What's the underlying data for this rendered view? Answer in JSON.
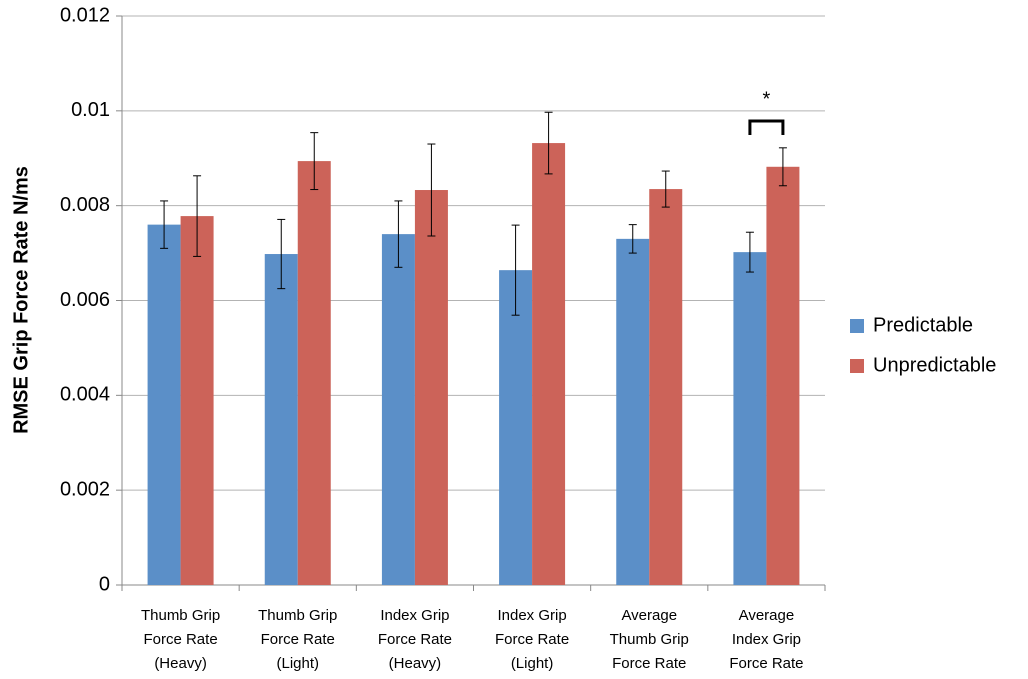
{
  "chart_data": {
    "type": "bar",
    "y_label": "RMSE Grip Force Rate N/ms",
    "categories": [
      "Thumb Grip\nForce Rate\n(Heavy)",
      "Thumb Grip\nForce Rate\n(Light)",
      "Index Grip\nForce Rate\n(Heavy)",
      "Index Grip\nForce Rate\n(Light)",
      "Average\nThumb Grip\nForce Rate",
      "Average\nIndex Grip\nForce Rate"
    ],
    "series": [
      {
        "name": "Predictable",
        "color": "#5b8fc8",
        "values": [
          0.0076,
          0.00698,
          0.0074,
          0.00664,
          0.0073,
          0.00702
        ],
        "errors": [
          0.0005,
          0.00073,
          0.0007,
          0.00095,
          0.0003,
          0.00042
        ]
      },
      {
        "name": "Unpredictable",
        "color": "#cc6359",
        "values": [
          0.00778,
          0.00894,
          0.00833,
          0.00932,
          0.00835,
          0.00882
        ],
        "errors": [
          0.00085,
          0.0006,
          0.00097,
          0.00065,
          0.00038,
          0.0004
        ]
      }
    ],
    "annotation": "*",
    "ylim": [
      0,
      0.012
    ],
    "yticks": [
      0,
      0.002,
      0.004,
      0.006,
      0.008,
      0.01,
      0.012
    ],
    "grid": true,
    "legend": "right"
  }
}
